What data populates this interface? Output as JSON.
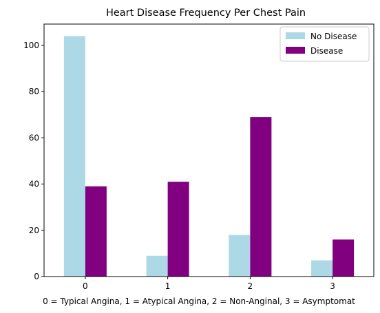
{
  "chart_data": {
    "type": "bar",
    "title": "Heart Disease Frequency Per Chest Pain",
    "xlabel": "0 = Typical Angina, 1 = Atypical Angina, 2 = Non-Anginal, 3 = Asymptomat",
    "ylabel": "",
    "categories": [
      "0",
      "1",
      "2",
      "3"
    ],
    "ylim": [
      0,
      109.2
    ],
    "yticks": [
      0,
      20,
      40,
      60,
      80,
      100
    ],
    "ytick_labels": [
      "0",
      "20",
      "40",
      "60",
      "80",
      "100"
    ],
    "grid": false,
    "legend_position": "top-right",
    "series": [
      {
        "name": "No Disease",
        "color": "#add8e6",
        "values": [
          104,
          9,
          18,
          7
        ]
      },
      {
        "name": "Disease",
        "color": "#800080",
        "values": [
          39,
          41,
          69,
          16
        ]
      }
    ]
  }
}
